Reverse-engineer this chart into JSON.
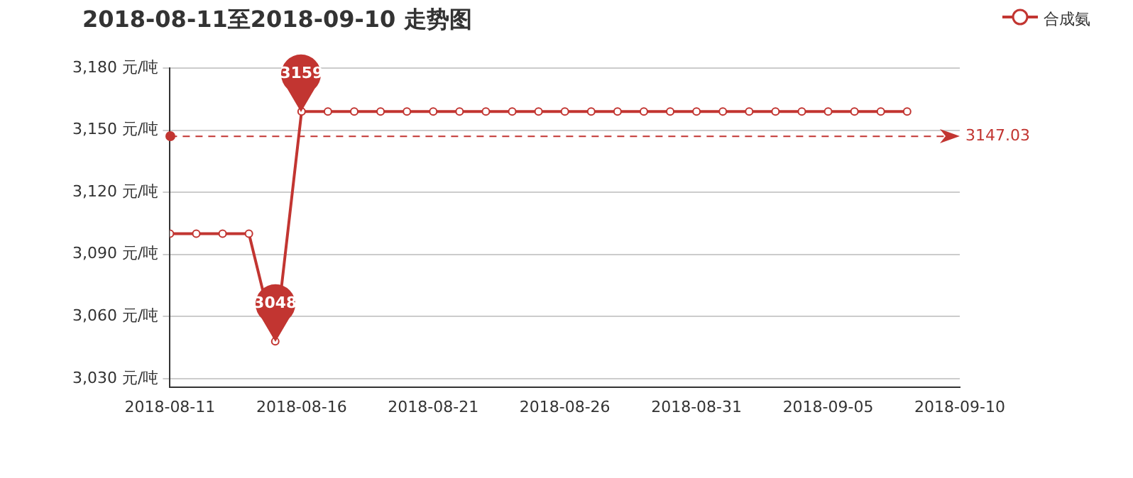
{
  "chart_data": {
    "type": "line",
    "title": "2018-08-11至2018-09-10 走势图",
    "x": [
      "2018-08-11",
      "2018-08-12",
      "2018-08-13",
      "2018-08-14",
      "2018-08-15",
      "2018-08-16",
      "2018-08-17",
      "2018-08-18",
      "2018-08-19",
      "2018-08-20",
      "2018-08-21",
      "2018-08-22",
      "2018-08-23",
      "2018-08-24",
      "2018-08-25",
      "2018-08-26",
      "2018-08-27",
      "2018-08-28",
      "2018-08-29",
      "2018-08-30",
      "2018-08-31",
      "2018-09-01",
      "2018-09-02",
      "2018-09-03",
      "2018-09-04",
      "2018-09-05",
      "2018-09-06",
      "2018-09-07",
      "2018-09-08"
    ],
    "series": [
      {
        "name": "合成氨",
        "color": "#c23531",
        "values": [
          3100,
          3100,
          3100,
          3100,
          3048,
          3159,
          3159,
          3159,
          3159,
          3159,
          3159,
          3159,
          3159,
          3159,
          3159,
          3159,
          3159,
          3159,
          3159,
          3159,
          3159,
          3159,
          3159,
          3159,
          3159,
          3159,
          3159,
          3159,
          3159
        ]
      }
    ],
    "xlim": [
      "2018-08-11",
      "2018-09-10"
    ],
    "xticks": [
      "2018-08-11",
      "2018-08-16",
      "2018-08-21",
      "2018-08-26",
      "2018-08-31",
      "2018-09-05",
      "2018-09-10"
    ],
    "ylim": [
      3026,
      3180
    ],
    "yticks": [
      {
        "value": 3030,
        "label": "3,030 元/吨"
      },
      {
        "value": 3060,
        "label": "3,060 元/吨"
      },
      {
        "value": 3090,
        "label": "3,090 元/吨"
      },
      {
        "value": 3120,
        "label": "3,120 元/吨"
      },
      {
        "value": 3150,
        "label": "3,150 元/吨"
      },
      {
        "value": 3180,
        "label": "3,180 元/吨"
      }
    ],
    "ref_lines": [
      {
        "axis": "y",
        "value": 3147.03,
        "label": "3147.03",
        "color": "#c23531",
        "line_style": "dashed"
      }
    ],
    "annotations": [
      {
        "text": "3159",
        "x": "2018-08-16",
        "y": 3159
      },
      {
        "text": "3048",
        "x": "2018-08-15",
        "y": 3048
      }
    ],
    "grid": "y",
    "legend": "top right",
    "marker": "circle",
    "line_style": "solid"
  }
}
